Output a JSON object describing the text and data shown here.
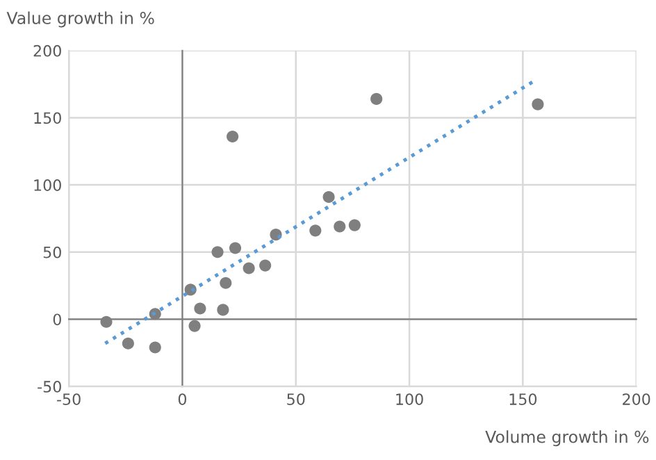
{
  "chart_data": {
    "type": "scatter",
    "xlabel": "Volume growth in %",
    "ylabel": "Value growth in %",
    "xlim": [
      -50,
      200
    ],
    "ylim": [
      -50,
      200
    ],
    "xticks": [
      -50,
      0,
      50,
      100,
      150,
      200
    ],
    "yticks": [
      -50,
      0,
      50,
      100,
      150,
      200
    ],
    "grid": true,
    "marker": "circle",
    "series": [
      {
        "color": "#7f7f7f",
        "x": [
          -33.5,
          -23.9,
          -12,
          -12,
          3.6,
          5.4,
          7.8,
          15.5,
          17.9,
          19.1,
          22.1,
          23.3,
          29.3,
          36.5,
          41.2,
          58.6,
          64.5,
          69.3,
          75.9,
          85.5,
          156.6
        ],
        "values": [
          -2,
          -18,
          4,
          -21,
          22,
          -5,
          8,
          50,
          7,
          27,
          136,
          53,
          38,
          40,
          63,
          66,
          91,
          69,
          70,
          164,
          160
        ]
      },
      {
        "type": "line",
        "color": "#5b9bd5",
        "line_style": "dotted",
        "marker": "none",
        "x": [
          -34,
          155.6
        ],
        "values": [
          -18,
          178
        ]
      }
    ]
  }
}
